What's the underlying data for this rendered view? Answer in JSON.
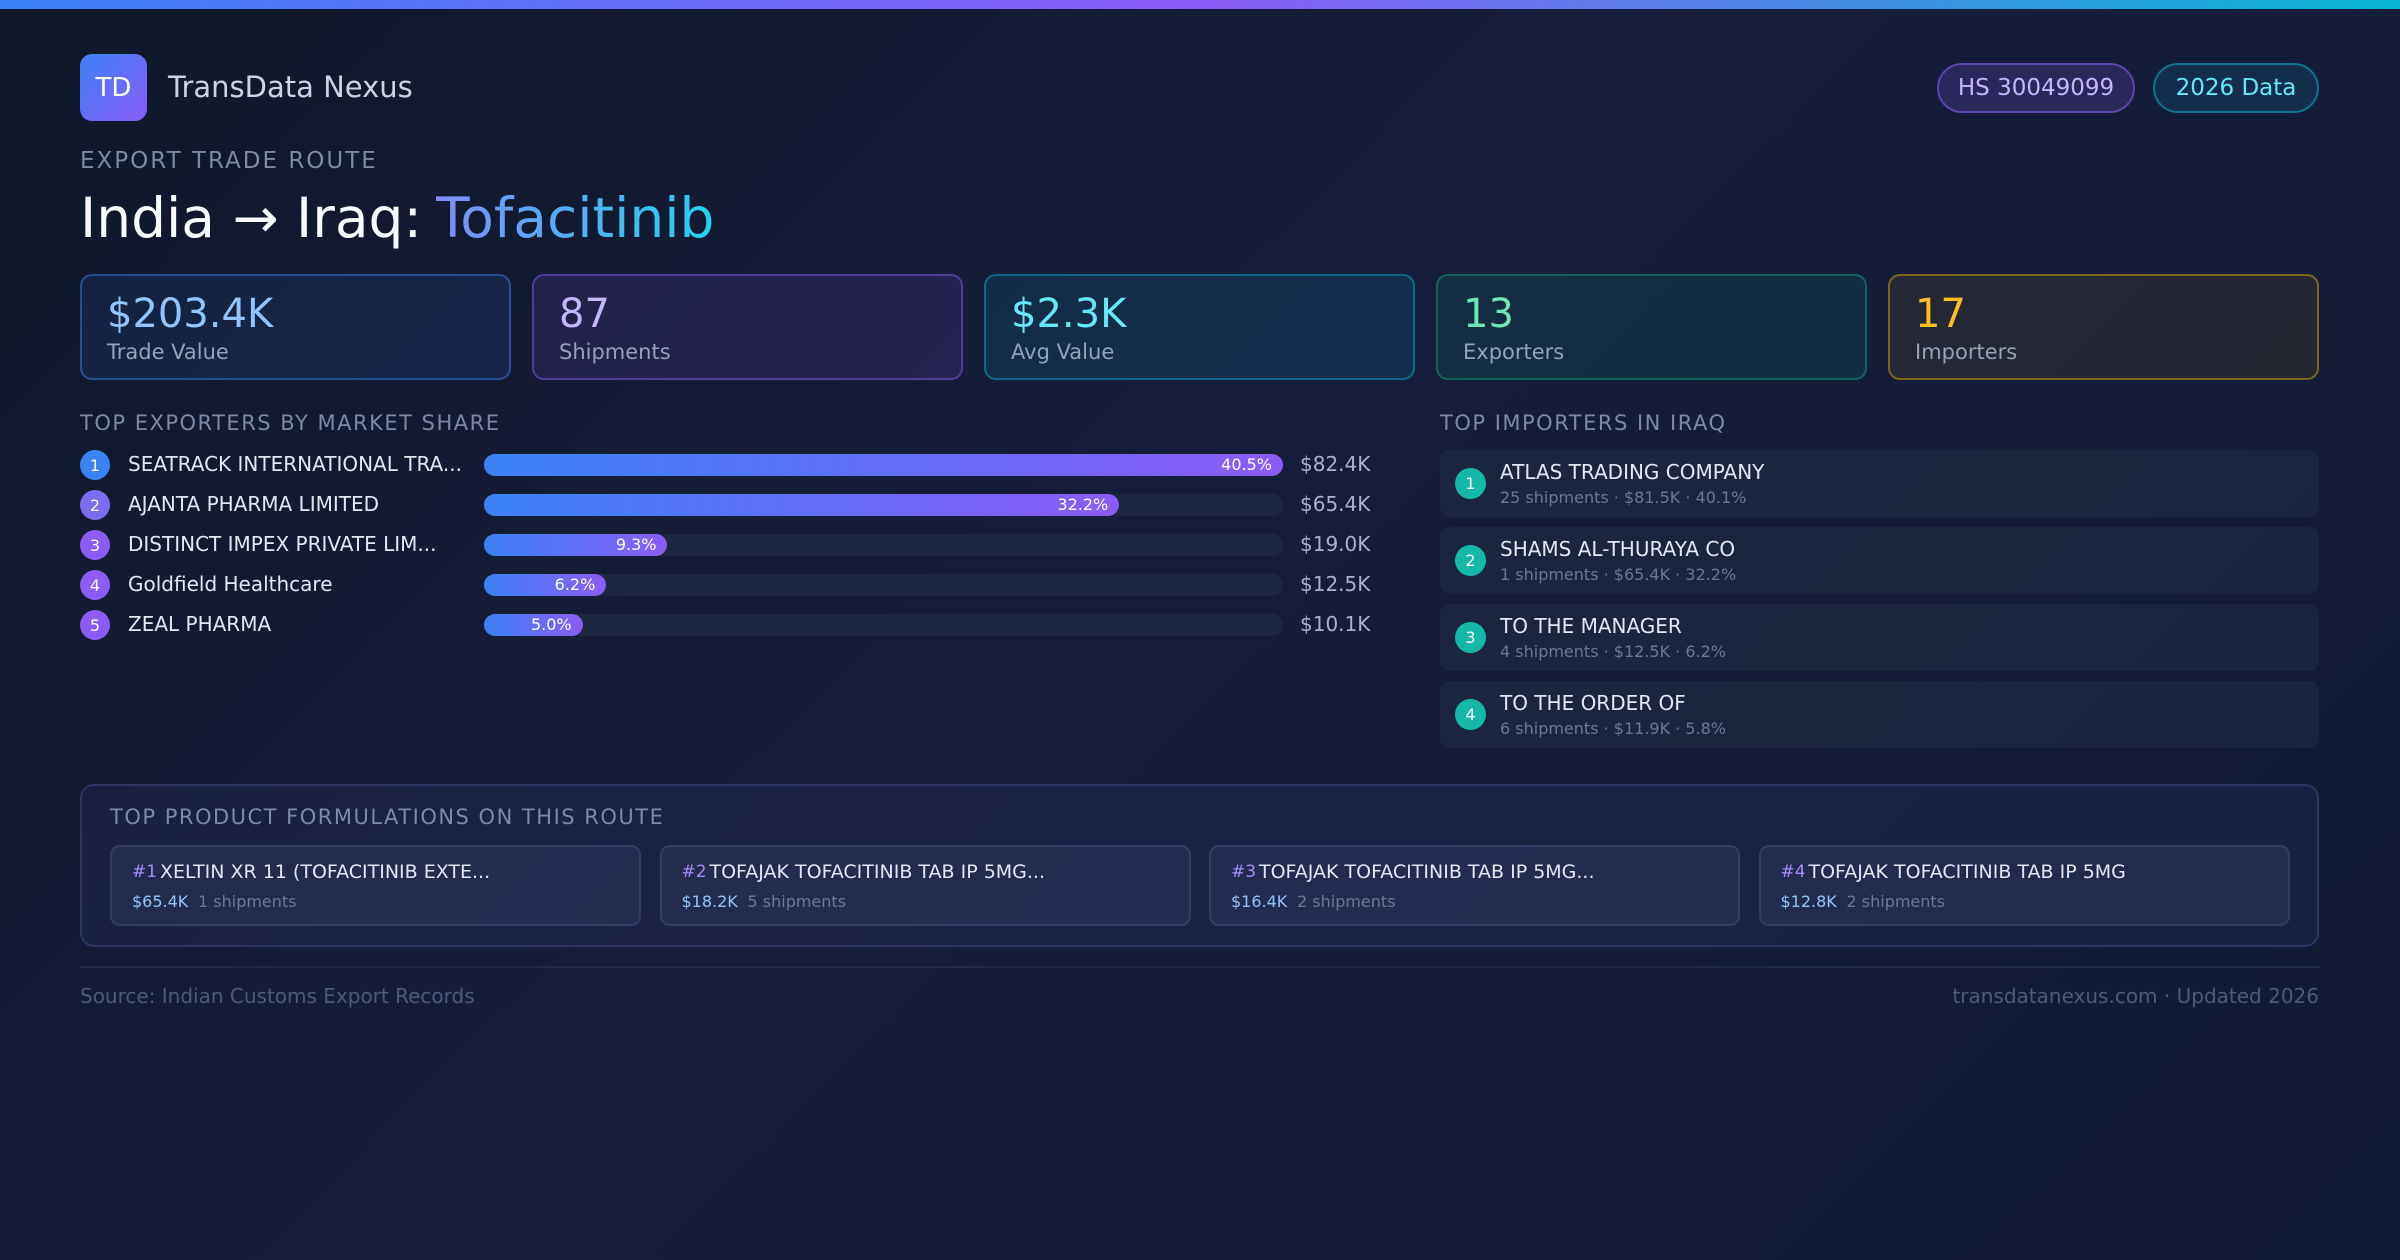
{
  "header": {
    "logo": "TD",
    "brand": "TransData Nexus",
    "badges": [
      "HS 30049099",
      "2026 Data"
    ]
  },
  "route": {
    "eyebrow": "EXPORT TRADE ROUTE",
    "title": "India → Iraq:",
    "product": "Tofacitinib"
  },
  "stats": [
    {
      "value": "$203.4K",
      "label": "Trade Value"
    },
    {
      "value": "87",
      "label": "Shipments"
    },
    {
      "value": "$2.3K",
      "label": "Avg Value"
    },
    {
      "value": "13",
      "label": "Exporters"
    },
    {
      "value": "17",
      "label": "Importers"
    }
  ],
  "exporters": {
    "title": "TOP EXPORTERS BY MARKET SHARE",
    "rows": [
      {
        "rank": 1,
        "name": "SEATRACK INTERNATIONAL TRA...",
        "share": 40.5,
        "share_label": "40.5%",
        "value": "$82.4K"
      },
      {
        "rank": 2,
        "name": "AJANTA PHARMA LIMITED",
        "share": 32.2,
        "share_label": "32.2%",
        "value": "$65.4K"
      },
      {
        "rank": 3,
        "name": "DISTINCT IMPEX PRIVATE LIM...",
        "share": 9.3,
        "share_label": "9.3%",
        "value": "$19.0K"
      },
      {
        "rank": 4,
        "name": "Goldfield Healthcare",
        "share": 6.2,
        "share_label": "6.2%",
        "value": "$12.5K"
      },
      {
        "rank": 5,
        "name": "ZEAL PHARMA",
        "share": 5.0,
        "share_label": "5.0%",
        "value": "$10.1K"
      }
    ]
  },
  "importers": {
    "title": "TOP IMPORTERS IN IRAQ",
    "rows": [
      {
        "rank": 1,
        "name": "ATLAS TRADING COMPANY",
        "details": "25 shipments · $81.5K · 40.1%"
      },
      {
        "rank": 2,
        "name": "SHAMS AL-THURAYA  CO",
        "details": "1 shipments · $65.4K · 32.2%"
      },
      {
        "rank": 3,
        "name": "TO THE MANAGER",
        "details": "4 shipments · $12.5K · 6.2%"
      },
      {
        "rank": 4,
        "name": "TO THE ORDER OF",
        "details": "6 shipments · $11.9K · 5.8%"
      }
    ]
  },
  "formulations": {
    "title": "TOP PRODUCT FORMULATIONS ON THIS ROUTE",
    "items": [
      {
        "rank": "#1",
        "name": "XELTIN XR 11 (TOFACITINIB EXTE...",
        "value": "$65.4K",
        "shipments": "1 shipments"
      },
      {
        "rank": "#2",
        "name": "TOFAJAK TOFACITINIB TAB IP 5MG...",
        "value": "$18.2K",
        "shipments": "5 shipments"
      },
      {
        "rank": "#3",
        "name": "TOFAJAK TOFACITINIB TAB IP 5MG...",
        "value": "$16.4K",
        "shipments": "2 shipments"
      },
      {
        "rank": "#4",
        "name": "TOFAJAK TOFACITINIB TAB IP 5MG",
        "value": "$12.8K",
        "shipments": "2 shipments"
      }
    ]
  },
  "footer": {
    "source": "Source: Indian Customs Export Records",
    "site": "transdatanexus.com · Updated 2026"
  }
}
